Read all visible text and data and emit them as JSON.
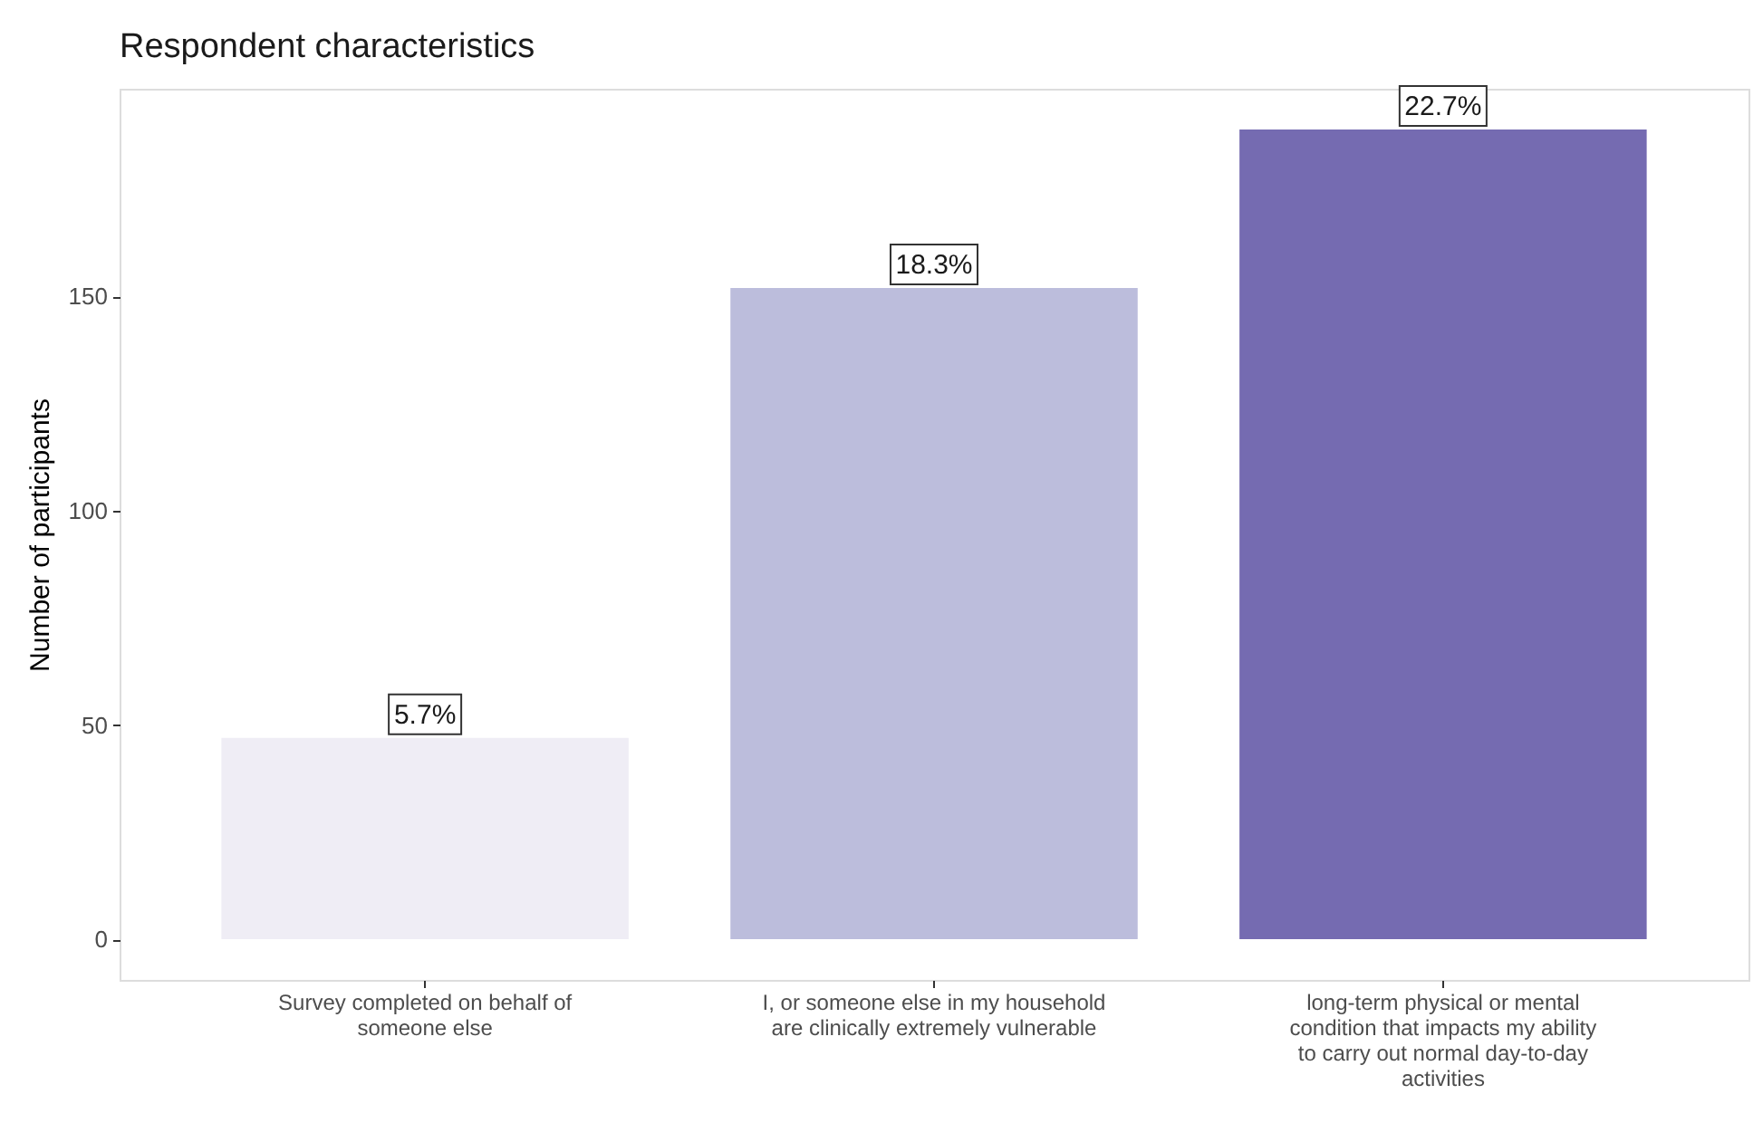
{
  "chart_data": {
    "type": "bar",
    "title": "Respondent characteristics",
    "ylabel": "Number of participants",
    "categories": [
      "Survey completed on behalf of someone else",
      "I, or someone else in my household are clinically extremely vulnerable",
      "long-term physical or mental condition that impacts my ability to carry out normal day-to-day activities"
    ],
    "values": [
      47,
      152,
      189
    ],
    "colors": [
      "#efedf5",
      "#bcbddc",
      "#756bb1"
    ],
    "annotations": [
      {
        "text": "5.7%",
        "x": "Survey completed on behalf of someone else",
        "y": 47
      },
      {
        "text": "18.3%",
        "x": "I, or someone else in my household are clinically extremely vulnerable",
        "y": 152
      },
      {
        "text": "22.7%",
        "x": "long-term physical or mental condition that impacts my ability to carry out normal day-to-day activities",
        "y": 189
      }
    ],
    "ylim": [
      -9.5,
      198.5
    ],
    "yticks": [
      0,
      50,
      100,
      150
    ],
    "grid": false
  }
}
